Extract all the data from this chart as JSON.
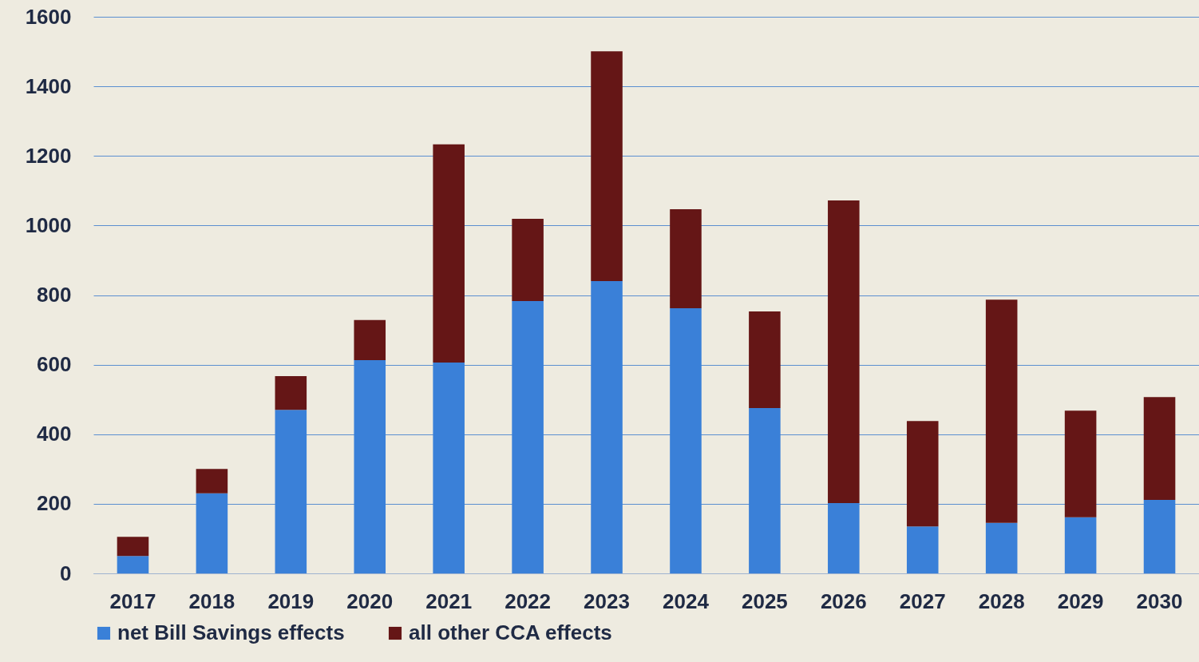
{
  "chart_data": {
    "type": "bar",
    "stacked": true,
    "categories": [
      "2017",
      "2018",
      "2019",
      "2020",
      "2021",
      "2022",
      "2023",
      "2024",
      "2025",
      "2026",
      "2027",
      "2028",
      "2029",
      "2030"
    ],
    "series": [
      {
        "name": "net Bill Savings effects",
        "color": "#3a80d8",
        "values": [
          50,
          230,
          470,
          613,
          606,
          783,
          840,
          762,
          475,
          202,
          135,
          145,
          161,
          211
        ]
      },
      {
        "name": "all other CCA effects",
        "color": "#651616",
        "values": [
          55,
          70,
          97,
          115,
          627,
          236,
          661,
          285,
          278,
          870,
          303,
          642,
          307,
          296
        ]
      }
    ],
    "ylim": [
      0,
      1600
    ],
    "yticks": [
      0,
      200,
      400,
      600,
      800,
      1000,
      1200,
      1400,
      1600
    ],
    "grid": "y",
    "legend": "bottom"
  }
}
